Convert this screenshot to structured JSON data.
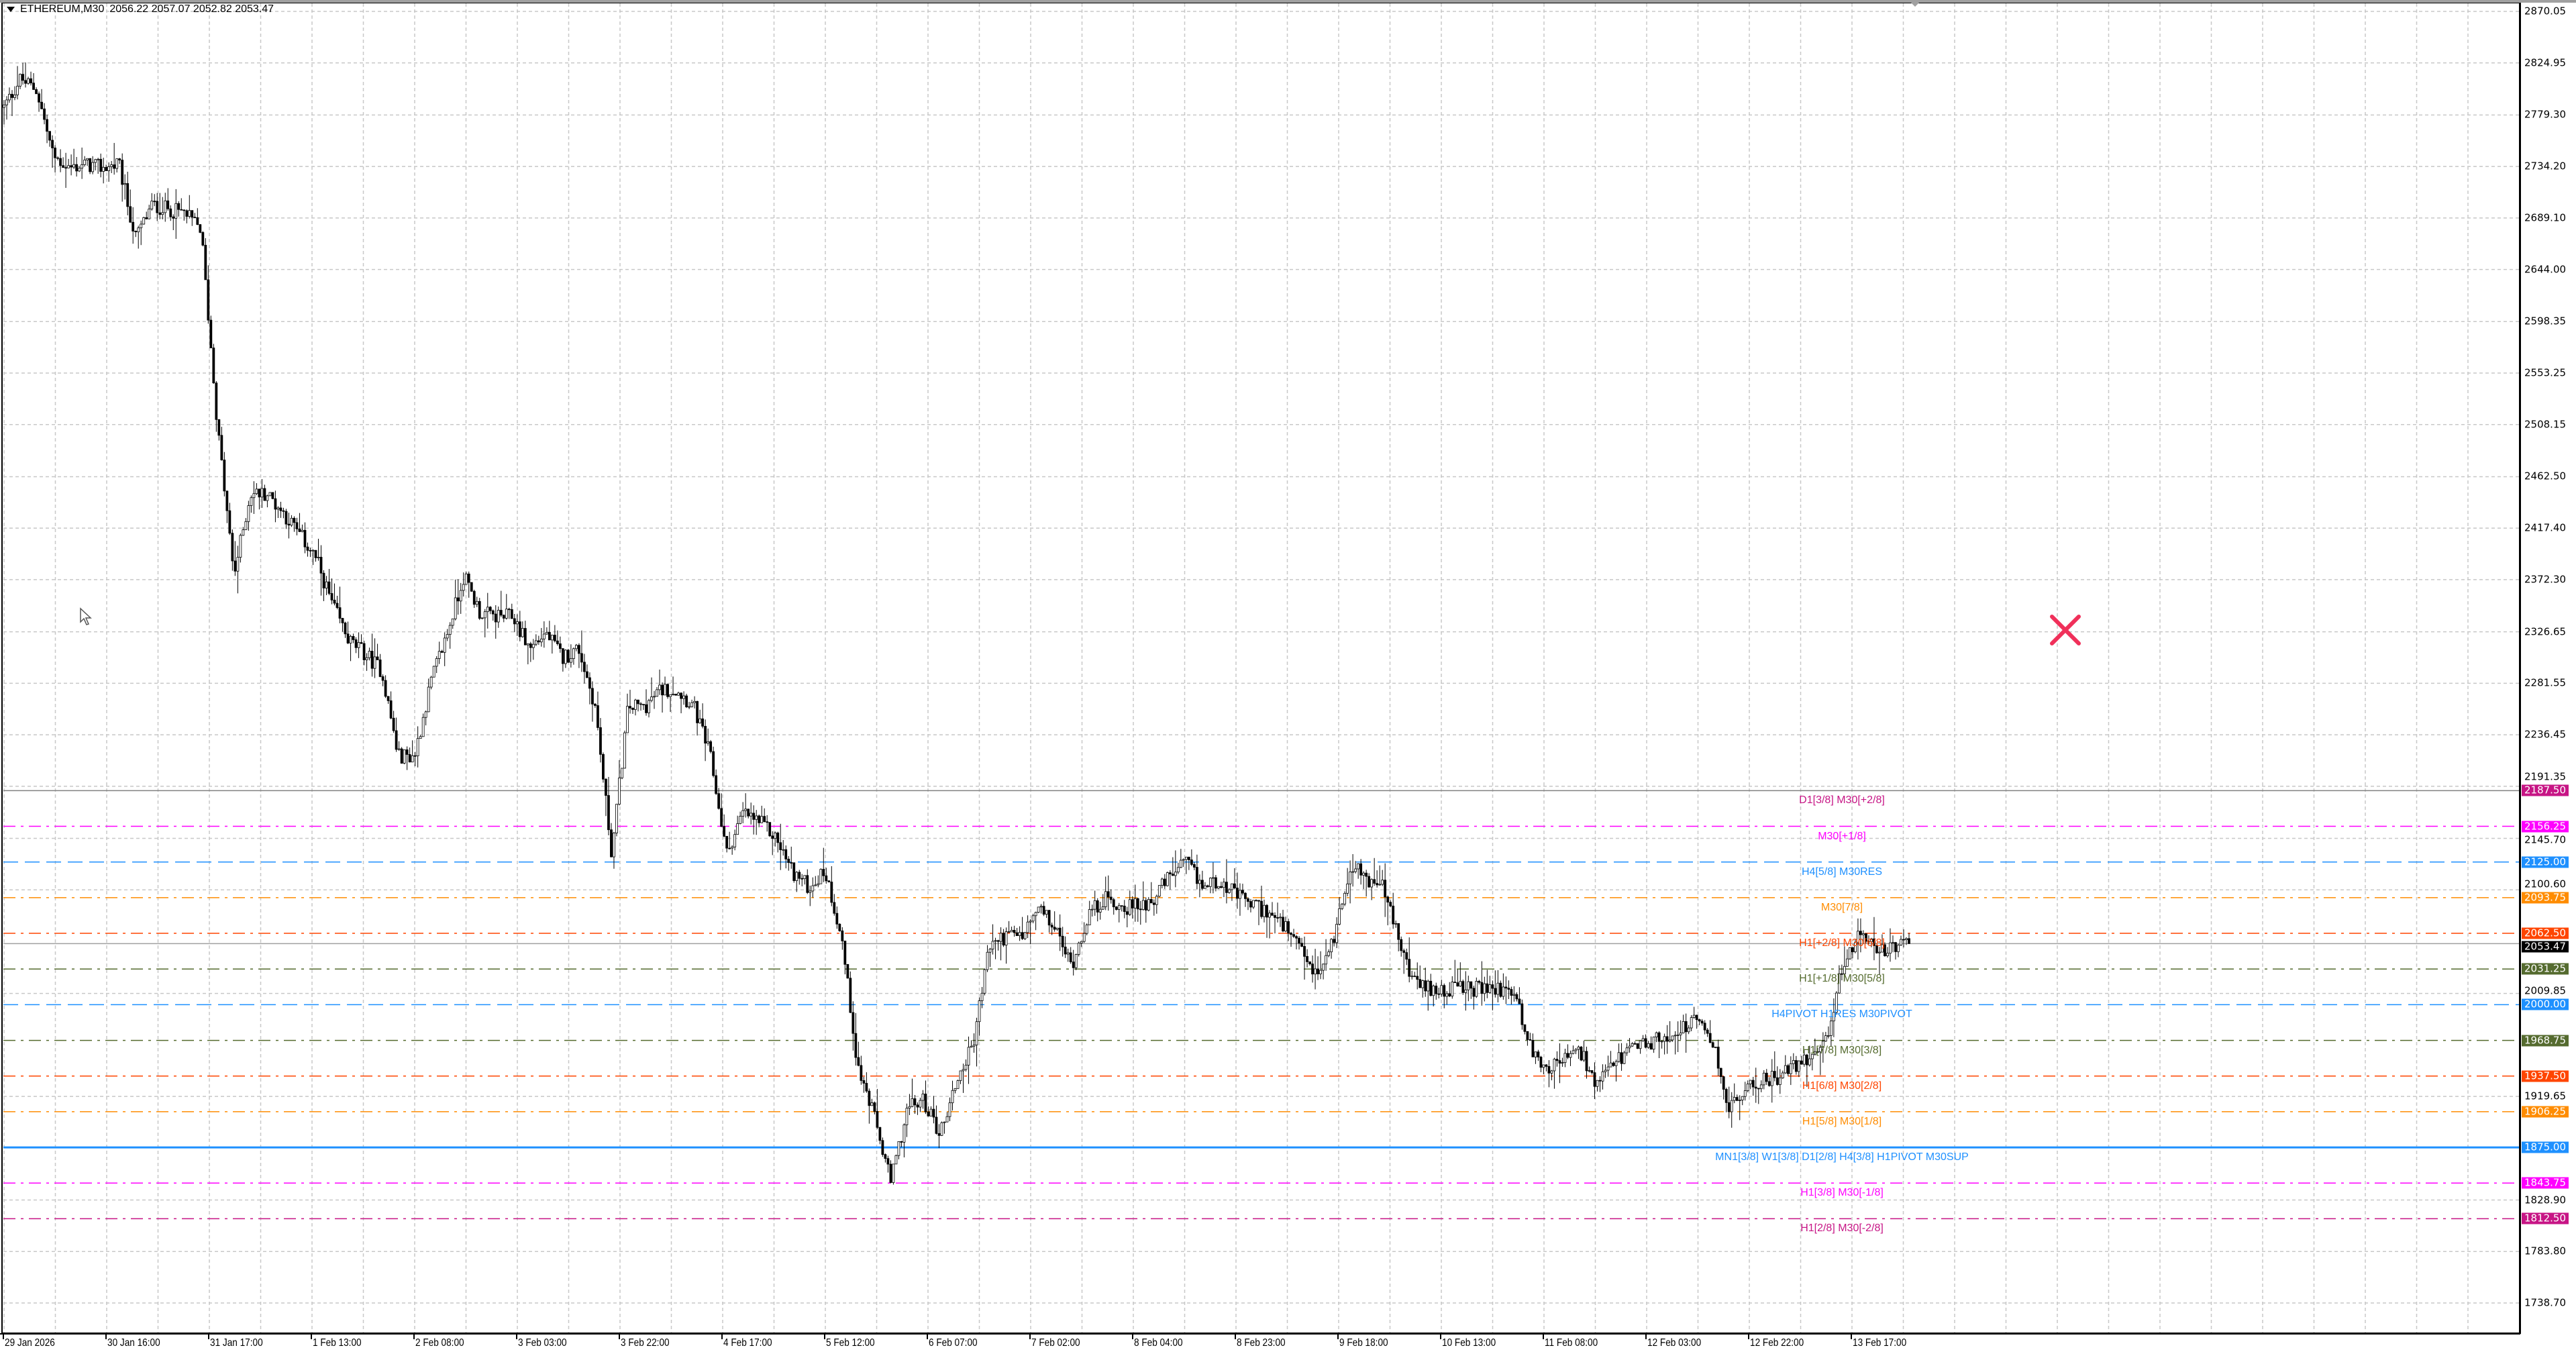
{
  "header": {
    "symbol": "ETHEREUM,M30",
    "ohlc": "2056.22 2057.07 2052.82 2053.47"
  },
  "colors": {
    "background": "#ffffff",
    "grid": "#c8c8c8",
    "bull_body": "#ffffff",
    "bear_body": "#000000",
    "close_marker": "#e8336a"
  },
  "chart_data": {
    "type": "candlestick",
    "symbol": "ETHEREUM",
    "timeframe": "M30",
    "ylim": [
      1738.7,
      2870.05
    ],
    "grid": true,
    "y_ticks": [
      "2870.05",
      "2824.95",
      "2779.30",
      "2734.20",
      "2689.10",
      "2644.00",
      "2598.35",
      "2553.25",
      "2508.15",
      "2462.50",
      "2417.40",
      "2372.30",
      "2326.65",
      "2281.55",
      "2236.45",
      "2191.35",
      "2145.70",
      "2100.60",
      "2009.85",
      "1919.65",
      "1828.90",
      "1783.80",
      "1738.70"
    ],
    "x_ticks": [
      "29 Jan 2026",
      "30 Jan 16:00",
      "31 Jan 17:00",
      "1 Feb 13:00",
      "2 Feb 08:00",
      "3 Feb 03:00",
      "3 Feb 22:00",
      "4 Feb 17:00",
      "5 Feb 12:00",
      "6 Feb 07:00",
      "7 Feb 02:00",
      "8 Feb 04:00",
      "8 Feb 23:00",
      "9 Feb 18:00",
      "10 Feb 13:00",
      "11 Feb 08:00",
      "12 Feb 03:00",
      "12 Feb 22:00",
      "13 Feb 17:00"
    ],
    "approx_price_path": [
      2786,
      2811,
      2801,
      2743,
      2733,
      2736,
      2733,
      2736,
      2671,
      2700,
      2697,
      2693,
      2679,
      2506,
      2376,
      2448,
      2448,
      2431,
      2412,
      2391,
      2350,
      2319,
      2307,
      2293,
      2218,
      2218,
      2283,
      2326,
      2376,
      2343,
      2340,
      2340,
      2312,
      2326,
      2304,
      2312,
      2261,
      2132,
      2261,
      2261,
      2276,
      2276,
      2261,
      2218,
      2132,
      2168,
      2160,
      2146,
      2117,
      2103,
      2117,
      2060,
      1945,
      1901,
      1844,
      1909,
      1916,
      1887,
      1933,
      1965,
      2052,
      2060,
      2060,
      2084,
      2067,
      2034,
      2078,
      2093,
      2086,
      2086,
      2093,
      2113,
      2124,
      2103,
      2110,
      2096,
      2088,
      2081,
      2067,
      2045,
      2024,
      2060,
      2124,
      2110,
      2103,
      2052,
      2016,
      2014,
      2014,
      2014,
      2014,
      2014,
      2011,
      1959,
      1945,
      1952,
      1959,
      1927,
      1949,
      1959,
      1966,
      1970,
      1978,
      1985,
      1970,
      1910,
      1923,
      1934,
      1937,
      1945,
      1956,
      1969,
      2038,
      2060,
      2050,
      2048,
      2053.47
    ],
    "current_price": "2053.47",
    "levels": [
      {
        "price": 2187.5,
        "price_label": "2187.50",
        "text": "D1[3/8] M30[+2/8]",
        "color": "#c71585",
        "style": "solid"
      },
      {
        "price": 2156.25,
        "price_label": "2156.25",
        "text": "M30[+1/8]",
        "color": "#ff00ff",
        "style": "dashdot"
      },
      {
        "price": 2125.0,
        "price_label": "2125.00",
        "text": "H4[5/8] M30RES",
        "color": "#1e90ff",
        "style": "dash"
      },
      {
        "price": 2093.75,
        "price_label": "2093.75",
        "text": "M30[7/8]",
        "color": "#ff8c00",
        "style": "dashdot"
      },
      {
        "price": 2062.5,
        "price_label": "2062.50",
        "text": "H1[+2/8] M30[6/8]",
        "color": "#ff4500",
        "style": "dashdot"
      },
      {
        "price": 2031.25,
        "price_label": "2031.25",
        "text": "H1[+1/8] M30[5/8]",
        "color": "#556b2f",
        "style": "dashdot"
      },
      {
        "price": 2000.0,
        "price_label": "2000.00",
        "text": "H4PIVOT H1RES M30PIVOT",
        "color": "#1e90ff",
        "style": "dash"
      },
      {
        "price": 1968.75,
        "price_label": "1968.75",
        "text": "H1[7/8] M30[3/8]",
        "color": "#556b2f",
        "style": "dashdot"
      },
      {
        "price": 1937.5,
        "price_label": "1937.50",
        "text": "H1[6/8] M30[2/8]",
        "color": "#ff4500",
        "style": "dashdot"
      },
      {
        "price": 1906.25,
        "price_label": "1906.25",
        "text": "H1[5/8] M30[1/8]",
        "color": "#ff8c00",
        "style": "dashdot"
      },
      {
        "price": 1875.0,
        "price_label": "1875.00",
        "text": "MN1[3/8] W1[3/8] D1[2/8] H4[3/8] H1PIVOT M30SUP",
        "color": "#1e90ff",
        "style": "solid-thick"
      },
      {
        "price": 1843.75,
        "price_label": "1843.75",
        "text": "H1[3/8] M30[-1/8]",
        "color": "#ff00ff",
        "style": "dashdot"
      },
      {
        "price": 1812.5,
        "price_label": "1812.50",
        "text": "H1[2/8] M30[-2/8]",
        "color": "#c71585",
        "style": "dashdot"
      }
    ]
  }
}
